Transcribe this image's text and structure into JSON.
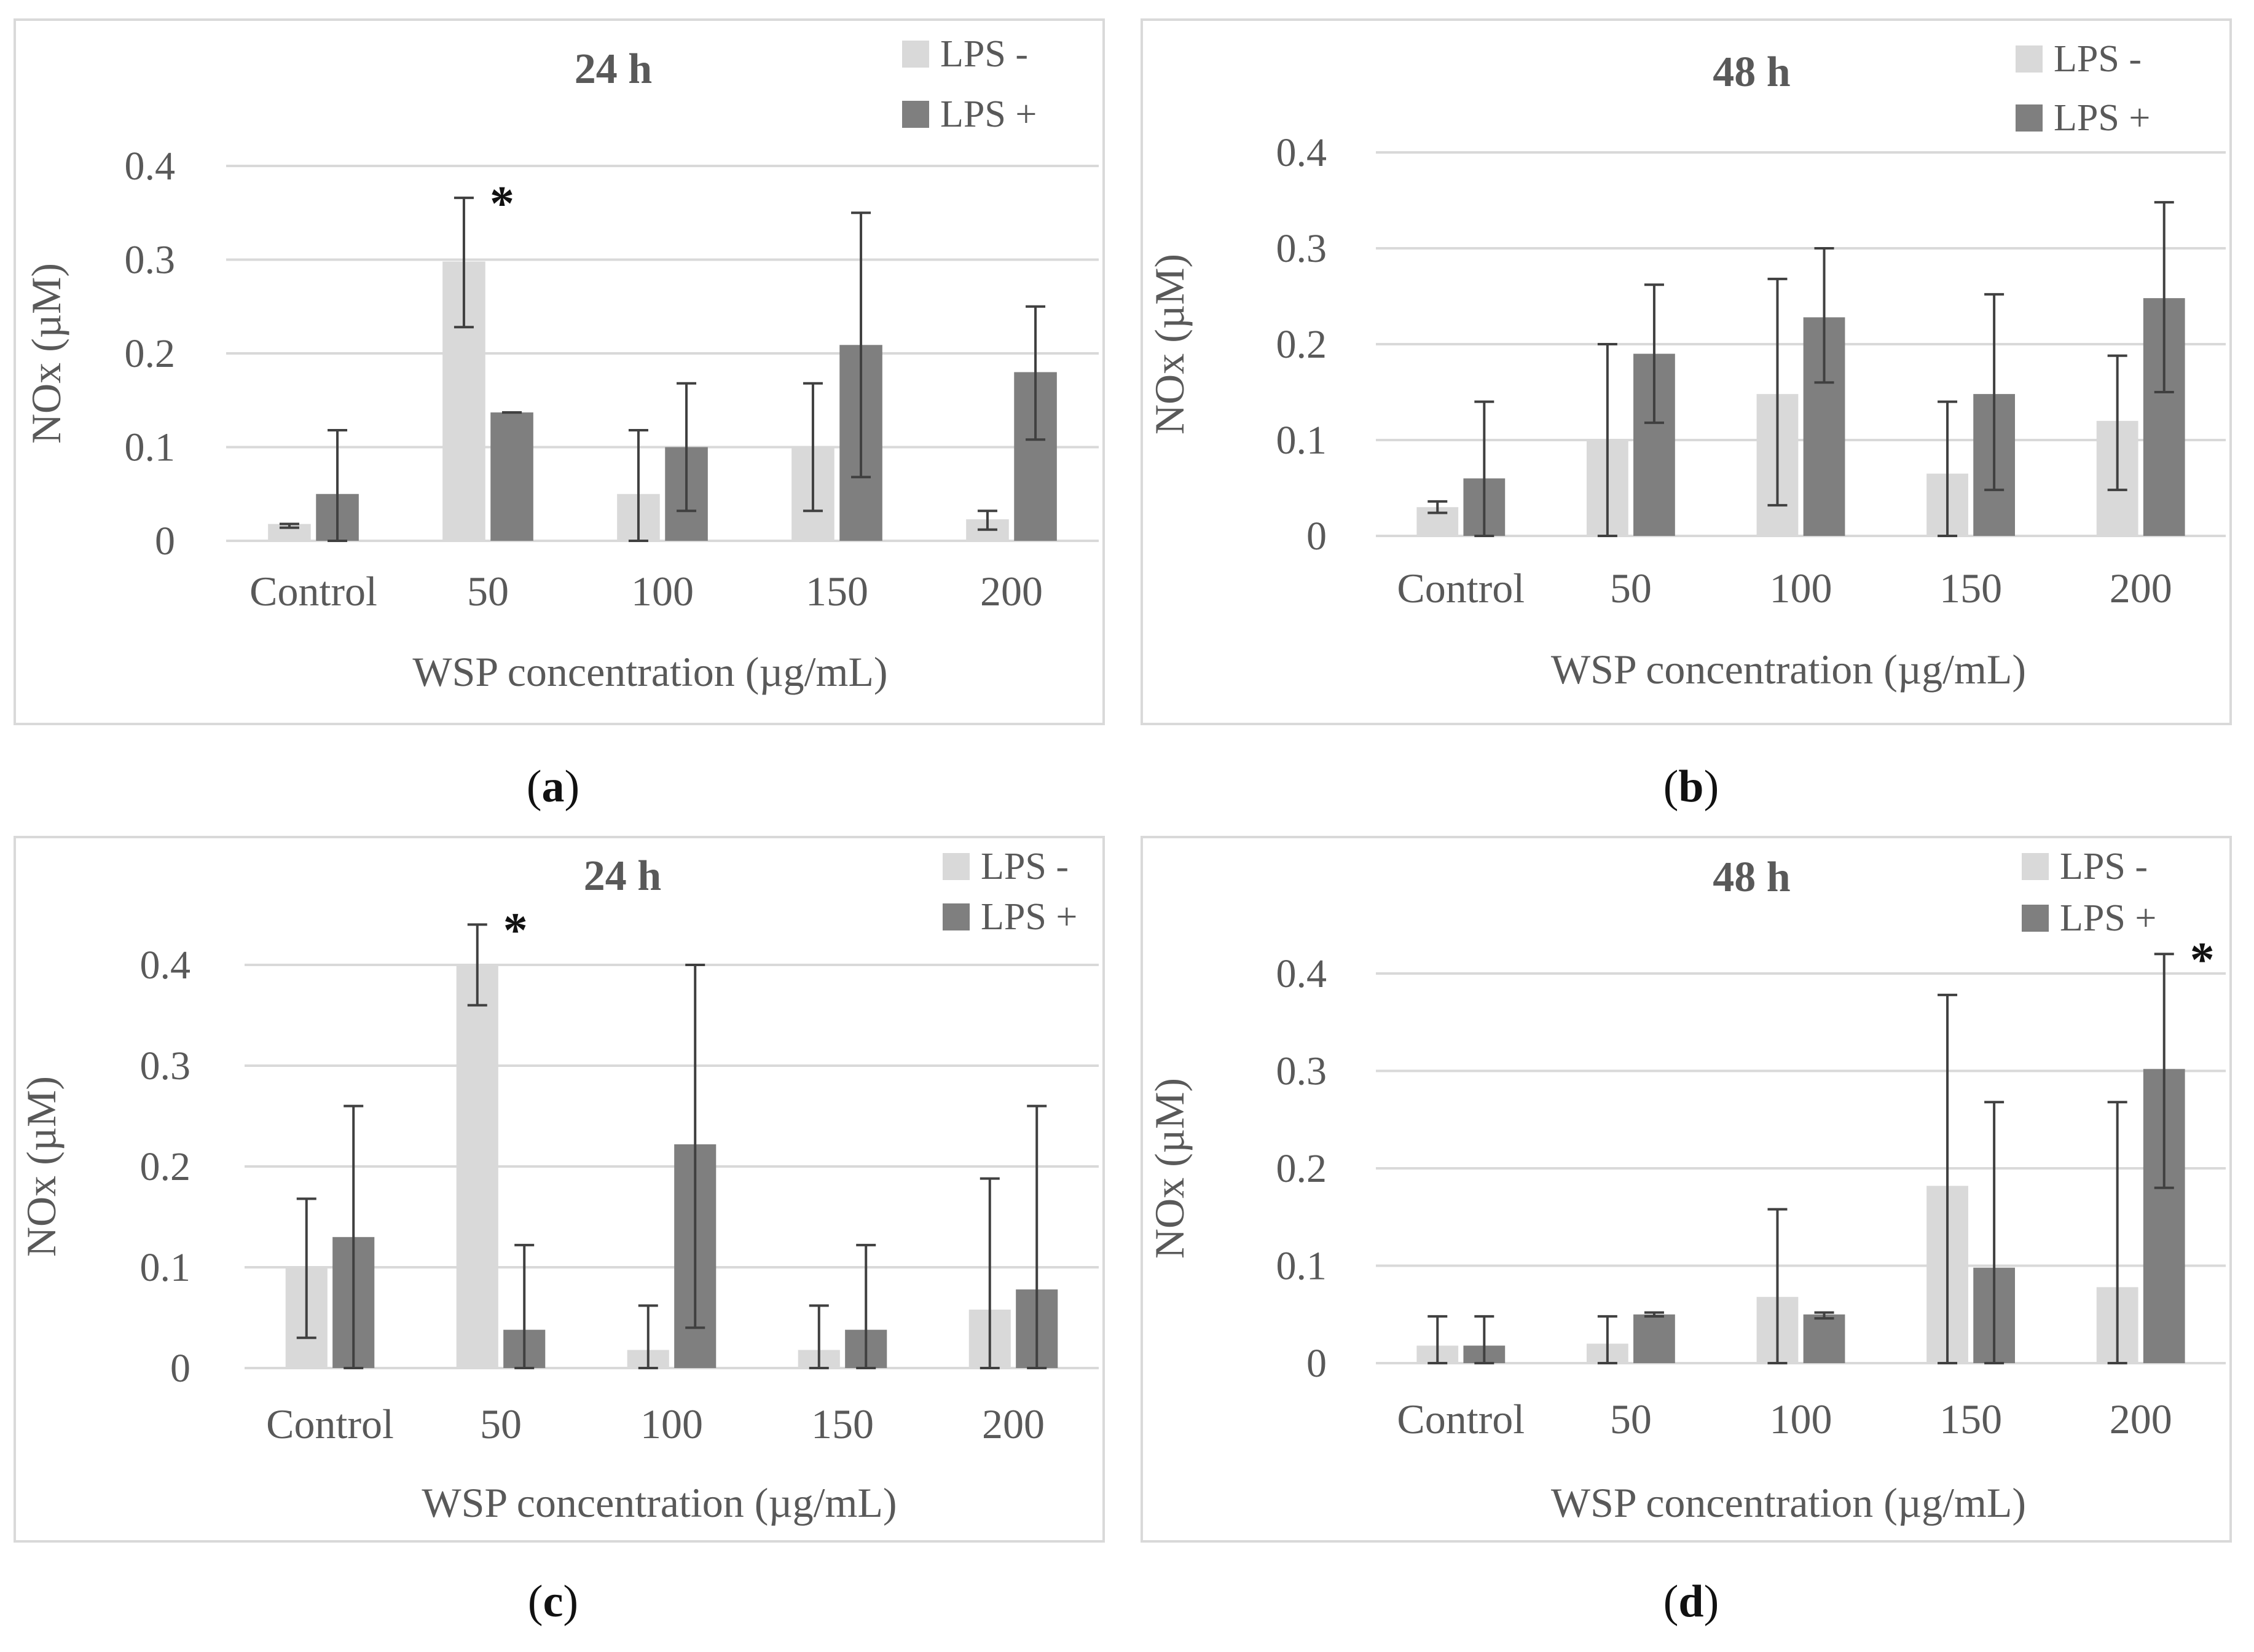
{
  "colors": {
    "lps_minus": "#d9d9d9",
    "lps_plus": "#7f7f7f",
    "grid": "#d9d9d9",
    "axis_text": "#595959",
    "error": "#404040"
  },
  "panels": [
    {
      "label": "a",
      "open": "(",
      "close": ")"
    },
    {
      "label": "b",
      "open": "(",
      "close": ")"
    },
    {
      "label": "c",
      "open": "(",
      "close": ")"
    },
    {
      "label": "d",
      "open": "(",
      "close": ")"
    }
  ],
  "chart_data": [
    {
      "type": "bar",
      "title": "24 h",
      "xlabel": "WSP concentration (µg/mL)",
      "ylabel": "NOx (µM)",
      "categories": [
        "Control",
        "50",
        "100",
        "150",
        "200"
      ],
      "yticks": [
        "0",
        "0.1",
        "0.2",
        "0.3",
        "0.4"
      ],
      "ylim": [
        0,
        0.4
      ],
      "series": [
        {
          "name": "LPS -",
          "values": [
            0.018,
            0.298,
            0.05,
            0.1,
            0.023
          ],
          "err_low": [
            0.014,
            0.228,
            0.0,
            0.032,
            0.012
          ],
          "err_high": [
            0.018,
            0.366,
            0.118,
            0.168,
            0.032
          ]
        },
        {
          "name": "LPS +",
          "values": [
            0.05,
            0.137,
            0.1,
            0.209,
            0.18
          ],
          "err_low": [
            0.0,
            0.137,
            0.032,
            0.068,
            0.108
          ],
          "err_high": [
            0.118,
            0.137,
            0.168,
            0.35,
            0.25
          ]
        }
      ],
      "annotations": [
        {
          "text": "*",
          "category": 1
        }
      ]
    },
    {
      "type": "bar",
      "title": "48 h",
      "xlabel": "WSP concentration (µg/mL)",
      "ylabel": "NOx (µM)",
      "categories": [
        "Control",
        "50",
        "100",
        "150",
        "200"
      ],
      "yticks": [
        "0",
        "0.1",
        "0.2",
        "0.3",
        "0.4"
      ],
      "ylim": [
        0,
        0.4
      ],
      "series": [
        {
          "name": "LPS -",
          "values": [
            0.03,
            0.1,
            0.148,
            0.065,
            0.12
          ],
          "err_low": [
            0.024,
            0.0,
            0.032,
            0.0,
            0.048
          ],
          "err_high": [
            0.036,
            0.2,
            0.268,
            0.14,
            0.188
          ]
        },
        {
          "name": "LPS +",
          "values": [
            0.06,
            0.19,
            0.228,
            0.148,
            0.248
          ],
          "err_low": [
            0.0,
            0.118,
            0.16,
            0.048,
            0.15
          ],
          "err_high": [
            0.14,
            0.262,
            0.3,
            0.252,
            0.348
          ]
        }
      ],
      "annotations": []
    },
    {
      "type": "bar",
      "title": "24 h",
      "xlabel": "WSP concentration (µg/mL)",
      "ylabel": "NOx (µM)",
      "categories": [
        "Control",
        "50",
        "100",
        "150",
        "200"
      ],
      "yticks": [
        "0",
        "0.1",
        "0.2",
        "0.3",
        "0.4"
      ],
      "ylim": [
        0,
        0.4
      ],
      "series": [
        {
          "name": "LPS -",
          "values": [
            0.1,
            0.4,
            0.018,
            0.018,
            0.058
          ],
          "err_low": [
            0.03,
            0.36,
            0.0,
            0.0,
            0.0
          ],
          "err_high": [
            0.168,
            0.44,
            0.062,
            0.062,
            0.188
          ]
        },
        {
          "name": "LPS +",
          "values": [
            0.13,
            0.038,
            0.222,
            0.038,
            0.078
          ],
          "err_low": [
            0.0,
            0.0,
            0.04,
            0.0,
            0.0
          ],
          "err_high": [
            0.26,
            0.122,
            0.4,
            0.122,
            0.26
          ]
        }
      ],
      "annotations": [
        {
          "text": "*",
          "category": 1
        }
      ]
    },
    {
      "type": "bar",
      "title": "48 h",
      "xlabel": "WSP concentration (µg/mL)",
      "ylabel": "NOx (µM)",
      "categories": [
        "Control",
        "50",
        "100",
        "150",
        "200"
      ],
      "yticks": [
        "0",
        "0.1",
        "0.2",
        "0.3",
        "0.4"
      ],
      "ylim": [
        0,
        0.4
      ],
      "series": [
        {
          "name": "LPS -",
          "values": [
            0.018,
            0.02,
            0.068,
            0.182,
            0.078
          ],
          "err_low": [
            0.0,
            0.0,
            0.0,
            0.0,
            0.0
          ],
          "err_high": [
            0.048,
            0.048,
            0.158,
            0.378,
            0.268
          ]
        },
        {
          "name": "LPS +",
          "values": [
            0.018,
            0.05,
            0.05,
            0.098,
            0.302
          ],
          "err_low": [
            0.0,
            0.048,
            0.046,
            0.0,
            0.18
          ],
          "err_high": [
            0.048,
            0.052,
            0.052,
            0.268,
            0.42
          ]
        }
      ],
      "annotations": [
        {
          "text": "*",
          "category": 4
        }
      ]
    }
  ]
}
